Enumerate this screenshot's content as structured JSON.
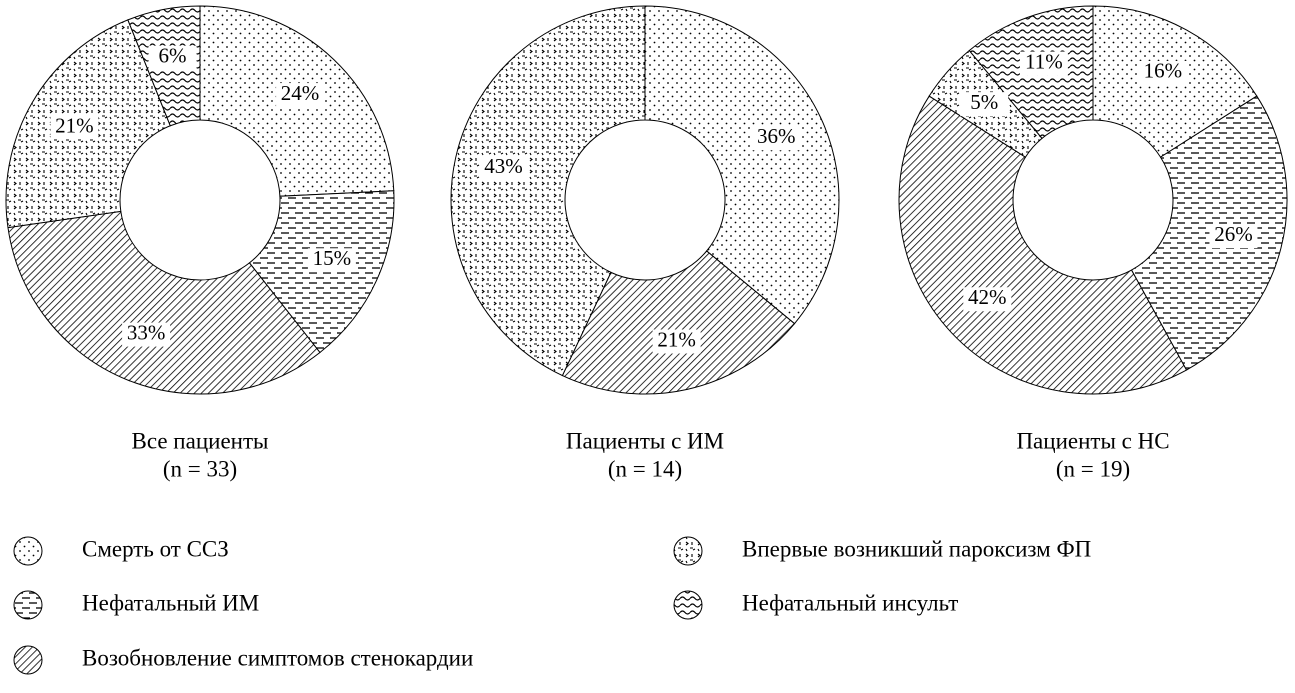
{
  "legend": {
    "labels": [
      "Смерть от ССЗ",
      "Нефатальный ИМ",
      "Возобновление симптомов стенокардии",
      "Впервые возникший пароксизм ФП",
      "Нефатальный инсульт"
    ]
  },
  "chart_data": [
    {
      "type": "donut",
      "title": "Все пациенты",
      "subtitle": "(n = 33)",
      "values": [
        24,
        15,
        33,
        21,
        6
      ],
      "value_labels": [
        "24%",
        "15%",
        "33%",
        "21%",
        "6%"
      ]
    },
    {
      "type": "donut",
      "title": "Пациенты с ИМ",
      "subtitle": "(n = 14)",
      "values": [
        36,
        0,
        21,
        43,
        0
      ],
      "value_labels": [
        "36%",
        null,
        "21%",
        "43%",
        null
      ]
    },
    {
      "type": "donut",
      "title": "Пациенты с НС",
      "subtitle": "(n = 19)",
      "values": [
        16,
        26,
        42,
        5,
        11
      ],
      "value_labels": [
        "16%",
        "26%",
        "42%",
        "5%",
        "11%"
      ]
    }
  ]
}
